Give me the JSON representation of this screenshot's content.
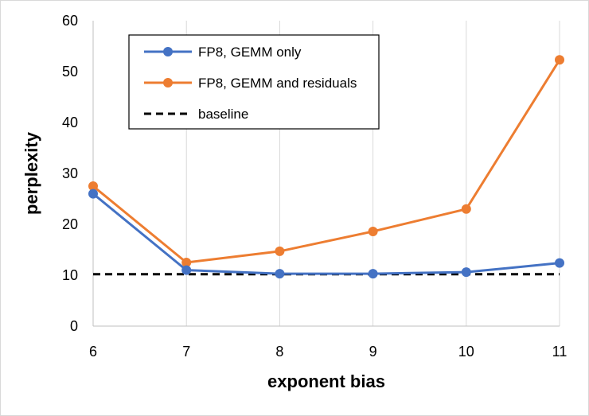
{
  "chart_data": {
    "type": "line",
    "title": "",
    "xlabel": "exponent bias",
    "ylabel": "perplexity",
    "x": [
      6,
      7,
      8,
      9,
      10,
      11
    ],
    "xlim": [
      6,
      11
    ],
    "ylim": [
      0,
      60
    ],
    "yticks": [
      0,
      10,
      20,
      30,
      40,
      50,
      60
    ],
    "grid": {
      "vertical": true,
      "horizontal": false
    },
    "legend_position": "top-left",
    "series": [
      {
        "name": "FP8, GEMM only",
        "values": [
          26.0,
          11.0,
          10.3,
          10.3,
          10.6,
          12.4
        ],
        "color": "#4472C4",
        "style": "solid",
        "markers": true
      },
      {
        "name": "FP8, GEMM and residuals",
        "values": [
          27.5,
          12.5,
          14.7,
          18.6,
          23.0,
          52.3
        ],
        "color": "#ED7D31",
        "style": "solid",
        "markers": true
      },
      {
        "name": "baseline",
        "values": [
          10.2,
          10.2,
          10.2,
          10.2,
          10.2,
          10.2
        ],
        "color": "#000000",
        "style": "dashed",
        "markers": false
      }
    ]
  }
}
